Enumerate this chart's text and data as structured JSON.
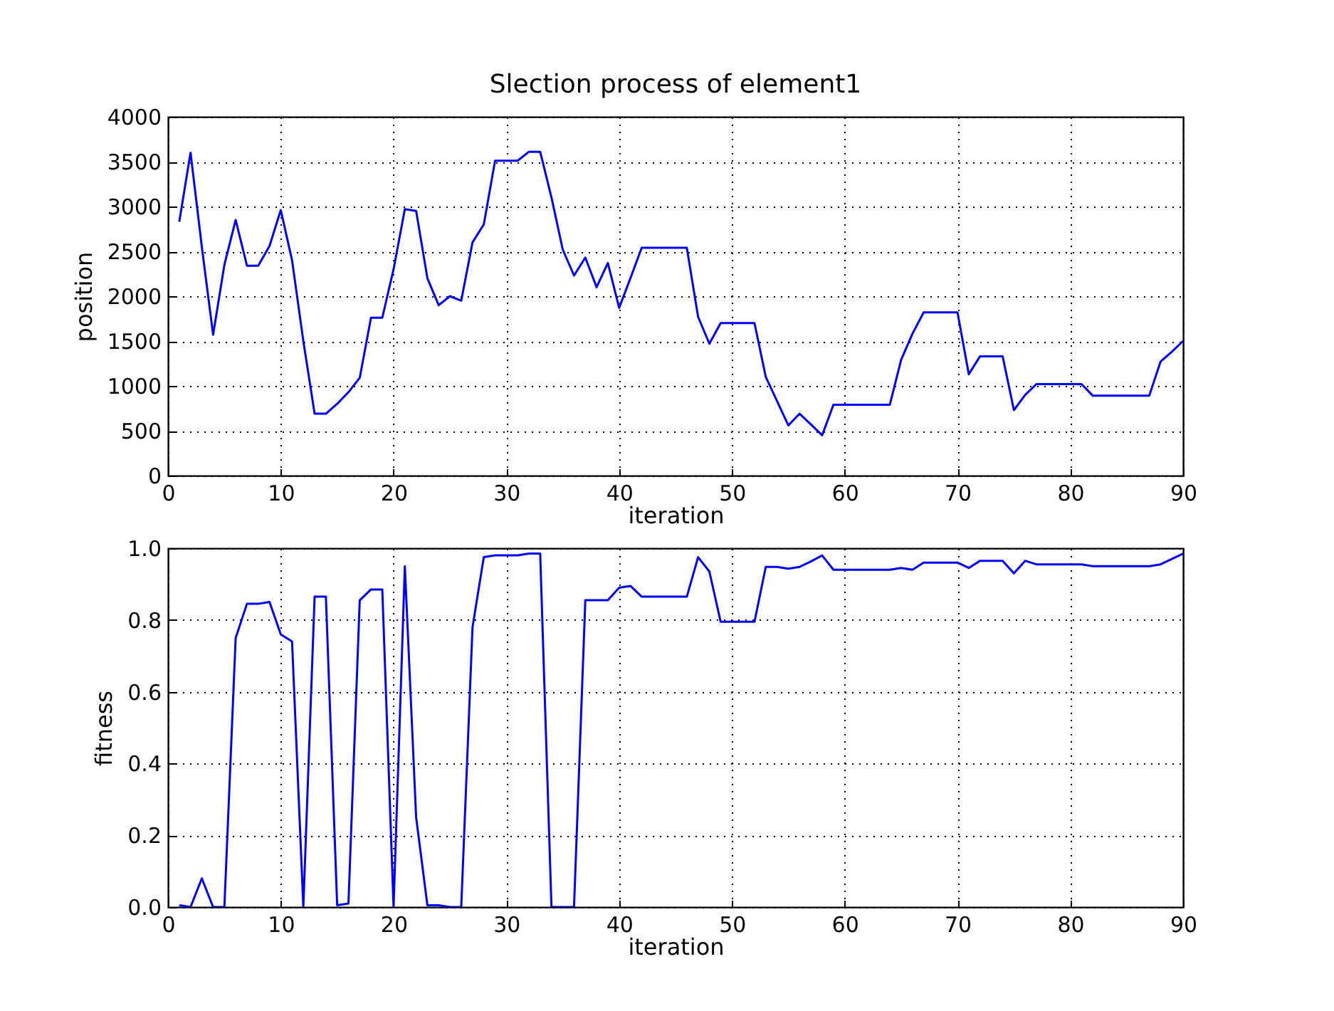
{
  "chart_data": [
    {
      "type": "line",
      "title": "Slection process of element1",
      "xlabel": "iteration",
      "ylabel": "position",
      "color": "#0000ff",
      "grid": true,
      "xlim": [
        0,
        90
      ],
      "xticks": [
        0,
        10,
        20,
        30,
        40,
        50,
        60,
        70,
        80,
        90
      ],
      "ylim": [
        0,
        4000
      ],
      "yticks": [
        0,
        500,
        1000,
        1500,
        2000,
        2500,
        3000,
        3500,
        4000
      ],
      "x": [
        1,
        2,
        3,
        4,
        5,
        6,
        7,
        8,
        9,
        10,
        11,
        12,
        13,
        14,
        15,
        16,
        17,
        18,
        19,
        20,
        21,
        22,
        23,
        24,
        25,
        26,
        27,
        28,
        29,
        30,
        31,
        32,
        33,
        34,
        35,
        36,
        37,
        38,
        39,
        40,
        41,
        42,
        43,
        44,
        45,
        46,
        47,
        48,
        49,
        50,
        51,
        52,
        53,
        54,
        55,
        56,
        57,
        58,
        59,
        60,
        61,
        62,
        63,
        64,
        65,
        66,
        67,
        68,
        69,
        70,
        71,
        72,
        73,
        74,
        75,
        76,
        77,
        78,
        79,
        80,
        81,
        82,
        83,
        84,
        85,
        86,
        87,
        88,
        89,
        90
      ],
      "values": [
        2830,
        3600,
        2550,
        1570,
        2350,
        2850,
        2340,
        2340,
        2560,
        2960,
        2400,
        1500,
        690,
        690,
        800,
        930,
        1090,
        1760,
        1760,
        2300,
        2970,
        2950,
        2200,
        1900,
        2000,
        1950,
        2600,
        2800,
        3510,
        3510,
        3510,
        3610,
        3610,
        3100,
        2520,
        2230,
        2430,
        2100,
        2370,
        1870,
        2200,
        2540,
        2540,
        2540,
        2540,
        2540,
        1770,
        1470,
        1700,
        1700,
        1700,
        1700,
        1100,
        830,
        560,
        690,
        570,
        450,
        790,
        790,
        790,
        790,
        790,
        790,
        1290,
        1580,
        1820,
        1820,
        1820,
        1820,
        1130,
        1330,
        1330,
        1330,
        730,
        900,
        1020,
        1020,
        1020,
        1020,
        1020,
        890,
        890,
        890,
        890,
        890,
        890,
        1270,
        1380,
        1500
      ]
    },
    {
      "type": "line",
      "xlabel": "iteration",
      "ylabel": "fitness",
      "color": "#0000ff",
      "grid": true,
      "xlim": [
        0,
        90
      ],
      "xticks": [
        0,
        10,
        20,
        30,
        40,
        50,
        60,
        70,
        80,
        90
      ],
      "ylim": [
        0,
        1
      ],
      "yticks": [
        {
          "value": 0,
          "label": "0.0"
        },
        {
          "value": 0.2,
          "label": "0.2"
        },
        {
          "value": 0.4,
          "label": "0.4"
        },
        {
          "value": 0.6,
          "label": "0.6"
        },
        {
          "value": 0.8,
          "label": "0.8"
        },
        {
          "value": 1,
          "label": "1.0"
        }
      ],
      "x": [
        1,
        2,
        3,
        4,
        5,
        6,
        7,
        8,
        9,
        10,
        11,
        12,
        13,
        14,
        15,
        16,
        17,
        18,
        19,
        20,
        21,
        22,
        23,
        24,
        25,
        26,
        27,
        28,
        29,
        30,
        31,
        32,
        33,
        34,
        35,
        36,
        37,
        38,
        39,
        40,
        41,
        42,
        43,
        44,
        45,
        46,
        47,
        48,
        49,
        50,
        51,
        52,
        53,
        54,
        55,
        56,
        57,
        58,
        59,
        60,
        61,
        62,
        63,
        64,
        65,
        66,
        67,
        68,
        69,
        70,
        71,
        72,
        73,
        74,
        75,
        76,
        77,
        78,
        79,
        80,
        81,
        82,
        83,
        84,
        85,
        86,
        87,
        88,
        89,
        90
      ],
      "values": [
        0.005,
        0,
        0.08,
        0,
        0,
        0.75,
        0.845,
        0.845,
        0.85,
        0.76,
        0.74,
        0,
        0.865,
        0.865,
        0.005,
        0.01,
        0.855,
        0.885,
        0.885,
        0,
        0.95,
        0.25,
        0.005,
        0.005,
        0,
        0,
        0.78,
        0.975,
        0.98,
        0.98,
        0.98,
        0.985,
        0.985,
        0,
        0,
        0,
        0.855,
        0.855,
        0.855,
        0.89,
        0.895,
        0.865,
        0.865,
        0.865,
        0.865,
        0.865,
        0.975,
        0.935,
        0.795,
        0.795,
        0.795,
        0.795,
        0.948,
        0.948,
        0.943,
        0.948,
        0.963,
        0.98,
        0.94,
        0.94,
        0.94,
        0.94,
        0.94,
        0.94,
        0.945,
        0.94,
        0.96,
        0.96,
        0.96,
        0.96,
        0.945,
        0.965,
        0.965,
        0.965,
        0.93,
        0.965,
        0.955,
        0.955,
        0.955,
        0.955,
        0.955,
        0.95,
        0.95,
        0.95,
        0.95,
        0.95,
        0.95,
        0.955,
        0.97,
        0.985
      ]
    }
  ]
}
